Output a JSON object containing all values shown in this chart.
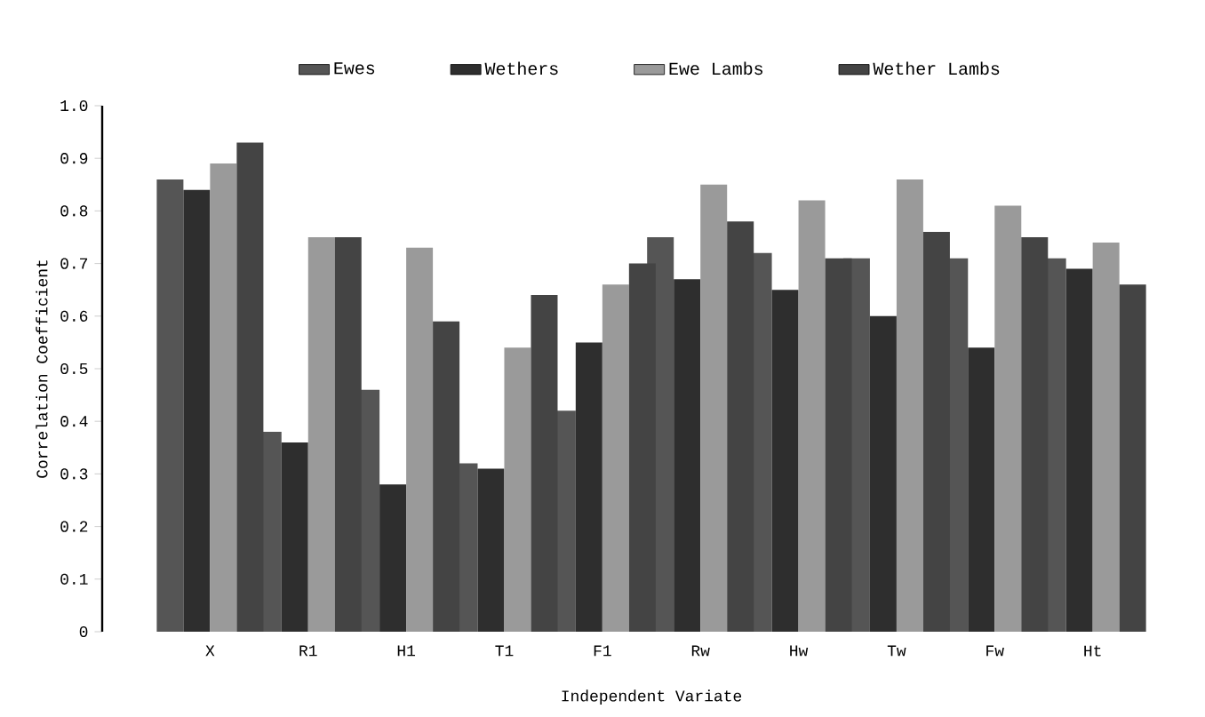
{
  "chart_data": {
    "type": "bar",
    "xlabel": "Independent Variate",
    "ylabel": "Correlation Coefficient",
    "categories": [
      "X",
      "R1",
      "H1",
      "T1",
      "F1",
      "Rw",
      "Hw",
      "Tw",
      "Fw",
      "Ht"
    ],
    "series": [
      {
        "name": "Ewes",
        "color": "#555555",
        "values": [
          0.86,
          0.38,
          0.46,
          0.32,
          0.42,
          0.75,
          0.72,
          0.71,
          0.71,
          0.71
        ]
      },
      {
        "name": "Wethers",
        "color": "#2e2e2e",
        "values": [
          0.84,
          0.36,
          0.28,
          0.31,
          0.55,
          0.67,
          0.65,
          0.6,
          0.54,
          0.69
        ]
      },
      {
        "name": "Ewe Lambs",
        "color": "#9a9a9a",
        "values": [
          0.89,
          0.75,
          0.73,
          0.54,
          0.66,
          0.85,
          0.82,
          0.86,
          0.81,
          0.74
        ]
      },
      {
        "name": "Wether Lambs",
        "color": "#444444",
        "values": [
          0.93,
          0.75,
          0.59,
          0.64,
          0.7,
          0.78,
          0.71,
          0.76,
          0.75,
          0.66
        ]
      }
    ],
    "ylim": [
      0,
      1.0
    ],
    "yticks": [
      0,
      0.1,
      0.2,
      0.3,
      0.4,
      0.5,
      0.6,
      0.7,
      0.8,
      0.9,
      {
        "value": 1.0,
        "label": "1.0"
      }
    ],
    "grid": false,
    "legend": "top"
  }
}
